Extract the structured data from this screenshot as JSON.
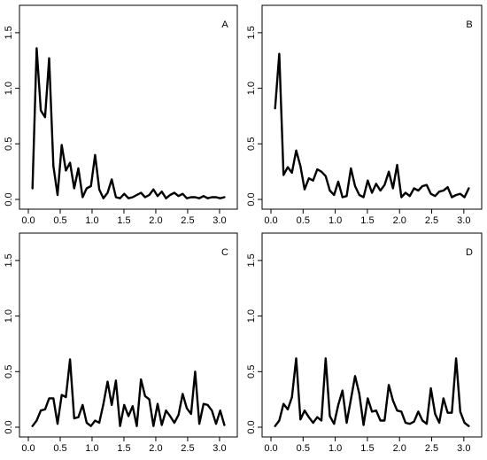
{
  "chart_data": [
    {
      "type": "line",
      "label": "A",
      "xlim": [
        0,
        3.14
      ],
      "ylim": [
        0,
        1.5
      ],
      "xticks": [
        "0.0",
        "0.5",
        "1.0",
        "1.5",
        "2.0",
        "2.5",
        "3.0"
      ],
      "yticks": [
        "0.0",
        "0.5",
        "1.0",
        "1.5"
      ],
      "x": [
        0.065,
        0.13,
        0.196,
        0.262,
        0.327,
        0.393,
        0.458,
        0.524,
        0.589,
        0.655,
        0.72,
        0.785,
        0.851,
        0.916,
        0.982,
        1.047,
        1.113,
        1.178,
        1.244,
        1.309,
        1.374,
        1.44,
        1.505,
        1.571,
        1.636,
        1.702,
        1.767,
        1.833,
        1.898,
        1.963,
        2.029,
        2.094,
        2.16,
        2.225,
        2.291,
        2.356,
        2.422,
        2.487,
        2.553,
        2.618,
        2.683,
        2.749,
        2.814,
        2.88,
        2.945,
        3.011,
        3.076
      ],
      "values": [
        0.1,
        1.36,
        0.8,
        0.74,
        1.27,
        0.3,
        0.04,
        0.49,
        0.26,
        0.33,
        0.1,
        0.28,
        0.02,
        0.1,
        0.12,
        0.4,
        0.09,
        0.01,
        0.06,
        0.18,
        0.02,
        0.01,
        0.05,
        0.01,
        0.02,
        0.04,
        0.06,
        0.02,
        0.04,
        0.09,
        0.03,
        0.07,
        0.01,
        0.04,
        0.06,
        0.03,
        0.05,
        0.01,
        0.02,
        0.02,
        0.01,
        0.03,
        0.01,
        0.02,
        0.02,
        0.01,
        0.02
      ]
    },
    {
      "type": "line",
      "label": "B",
      "xlim": [
        0,
        3.14
      ],
      "ylim": [
        0,
        1.5
      ],
      "xticks": [
        "0.0",
        "0.5",
        "1.0",
        "1.5",
        "2.0",
        "2.5",
        "3.0"
      ],
      "yticks": [
        "0.0",
        "0.5",
        "1.0",
        "1.5"
      ],
      "x": [
        0.065,
        0.13,
        0.196,
        0.262,
        0.327,
        0.393,
        0.458,
        0.524,
        0.589,
        0.655,
        0.72,
        0.785,
        0.851,
        0.916,
        0.982,
        1.047,
        1.113,
        1.178,
        1.244,
        1.309,
        1.374,
        1.44,
        1.505,
        1.571,
        1.636,
        1.702,
        1.767,
        1.833,
        1.898,
        1.963,
        2.029,
        2.094,
        2.16,
        2.225,
        2.291,
        2.356,
        2.422,
        2.487,
        2.553,
        2.618,
        2.683,
        2.749,
        2.814,
        2.88,
        2.945,
        3.011,
        3.076
      ],
      "values": [
        0.82,
        1.31,
        0.22,
        0.29,
        0.24,
        0.44,
        0.3,
        0.09,
        0.19,
        0.17,
        0.27,
        0.25,
        0.21,
        0.08,
        0.04,
        0.16,
        0.02,
        0.03,
        0.28,
        0.12,
        0.04,
        0.02,
        0.17,
        0.06,
        0.14,
        0.08,
        0.13,
        0.25,
        0.1,
        0.31,
        0.02,
        0.06,
        0.03,
        0.1,
        0.08,
        0.12,
        0.13,
        0.05,
        0.03,
        0.07,
        0.08,
        0.11,
        0.02,
        0.04,
        0.05,
        0.02,
        0.1
      ]
    },
    {
      "type": "line",
      "label": "C",
      "xlim": [
        0,
        3.14
      ],
      "ylim": [
        0,
        1.5
      ],
      "xticks": [
        "0.0",
        "0.5",
        "1.0",
        "1.5",
        "2.0",
        "2.5",
        "3.0"
      ],
      "yticks": [
        "0.0",
        "0.5",
        "1.0",
        "1.5"
      ],
      "x": [
        0.065,
        0.13,
        0.196,
        0.262,
        0.327,
        0.393,
        0.458,
        0.524,
        0.589,
        0.655,
        0.72,
        0.785,
        0.851,
        0.916,
        0.982,
        1.047,
        1.113,
        1.178,
        1.244,
        1.309,
        1.374,
        1.44,
        1.505,
        1.571,
        1.636,
        1.702,
        1.767,
        1.833,
        1.898,
        1.963,
        2.029,
        2.094,
        2.16,
        2.225,
        2.291,
        2.356,
        2.422,
        2.487,
        2.553,
        2.618,
        2.683,
        2.749,
        2.814,
        2.88,
        2.945,
        3.011,
        3.076
      ],
      "values": [
        0.01,
        0.06,
        0.15,
        0.16,
        0.26,
        0.26,
        0.03,
        0.29,
        0.27,
        0.61,
        0.08,
        0.09,
        0.2,
        0.04,
        0.01,
        0.06,
        0.04,
        0.21,
        0.41,
        0.2,
        0.42,
        0.01,
        0.2,
        0.1,
        0.19,
        0.01,
        0.43,
        0.28,
        0.25,
        0.01,
        0.21,
        0.02,
        0.15,
        0.1,
        0.04,
        0.11,
        0.3,
        0.17,
        0.12,
        0.5,
        0.03,
        0.21,
        0.2,
        0.15,
        0.03,
        0.15,
        0.02
      ]
    },
    {
      "type": "line",
      "label": "D",
      "xlim": [
        0,
        3.14
      ],
      "ylim": [
        0,
        1.5
      ],
      "xticks": [
        "0.0",
        "0.5",
        "1.0",
        "1.5",
        "2.0",
        "2.5",
        "3.0"
      ],
      "yticks": [
        "0.0",
        "0.5",
        "1.0",
        "1.5"
      ],
      "x": [
        0.065,
        0.13,
        0.196,
        0.262,
        0.327,
        0.393,
        0.458,
        0.524,
        0.589,
        0.655,
        0.72,
        0.785,
        0.851,
        0.916,
        0.982,
        1.047,
        1.113,
        1.178,
        1.244,
        1.309,
        1.374,
        1.44,
        1.505,
        1.571,
        1.636,
        1.702,
        1.767,
        1.833,
        1.898,
        1.963,
        2.029,
        2.094,
        2.16,
        2.225,
        2.291,
        2.356,
        2.422,
        2.487,
        2.553,
        2.618,
        2.683,
        2.749,
        2.814,
        2.88,
        2.945,
        3.011,
        3.076
      ],
      "values": [
        0.01,
        0.06,
        0.21,
        0.16,
        0.27,
        0.62,
        0.07,
        0.15,
        0.09,
        0.04,
        0.09,
        0.06,
        0.62,
        0.1,
        0.03,
        0.2,
        0.33,
        0.04,
        0.25,
        0.46,
        0.3,
        0.02,
        0.26,
        0.14,
        0.15,
        0.06,
        0.06,
        0.38,
        0.24,
        0.15,
        0.14,
        0.04,
        0.03,
        0.05,
        0.14,
        0.06,
        0.03,
        0.35,
        0.12,
        0.04,
        0.26,
        0.13,
        0.13,
        0.62,
        0.14,
        0.04,
        0.01
      ]
    }
  ]
}
